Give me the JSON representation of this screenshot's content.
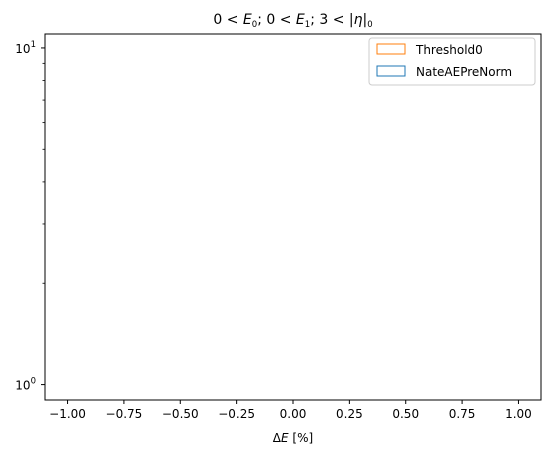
{
  "chart_data": {
    "type": "histogram",
    "title": "0 < E0; 0 < E1; 3 < |η|0",
    "title_parts": {
      "p1": "0 < ",
      "e0_base": "E",
      "e0_sub": "0",
      "p2": "; 0 < ",
      "e1_base": "E",
      "e1_sub": "1",
      "p3": "; 3 < |",
      "eta": "η",
      "p4": "|",
      "eta_sub": "0"
    },
    "xlabel": "ΔE [%]",
    "xlabel_parts": {
      "delta": "Δ",
      "e": "E",
      "rest": " [%]"
    },
    "ylabel": "",
    "x_scale": "linear",
    "y_scale": "log",
    "xlim": [
      -1.1,
      1.1
    ],
    "ylim": [
      0.9,
      11
    ],
    "x_ticks": [
      -1.0,
      -0.75,
      -0.5,
      -0.25,
      0.0,
      0.25,
      0.5,
      0.75,
      1.0
    ],
    "x_tick_labels": [
      "−1.00",
      "−0.75",
      "−0.50",
      "−0.25",
      "0.00",
      "0.25",
      "0.50",
      "0.75",
      "1.00"
    ],
    "y_major_ticks": [
      1,
      10
    ],
    "y_major_tick_labels": [
      {
        "base": "10",
        "exp": "0"
      },
      {
        "base": "10",
        "exp": "1"
      }
    ],
    "y_minor_ticks": [
      2,
      3,
      4,
      5,
      6,
      7,
      8,
      9
    ],
    "grid": false,
    "legend_position": "top-right",
    "series": [
      {
        "name": "Threshold0",
        "color": "#ff7f0e",
        "style": "step-outline",
        "values": []
      },
      {
        "name": "NateAEPreNorm",
        "color": "#1f77b4",
        "style": "step-outline",
        "values": []
      }
    ]
  }
}
